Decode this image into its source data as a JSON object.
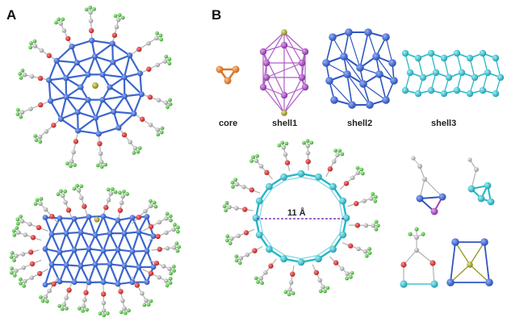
{
  "figure": {
    "panel_a_label": "A",
    "panel_b_label": "B",
    "core_label": "core",
    "shell1_label": "shell1",
    "shell2_label": "shell2",
    "shell3_label": "shell3",
    "ring_diameter_label": "11 Å"
  },
  "colors": {
    "core_orange": "#e0782a",
    "shell1_purple": "#a040b8",
    "shell2_blue": "#2f55c0",
    "shell3_cyan": "#22b8c8",
    "oxygen_red": "#d82a2a",
    "fluorine_green": "#4cc83a",
    "carbon_gray": "#9a9a9a",
    "center_olive": "#9a9a2a",
    "dim_line_purple": "#7a3ab8"
  }
}
